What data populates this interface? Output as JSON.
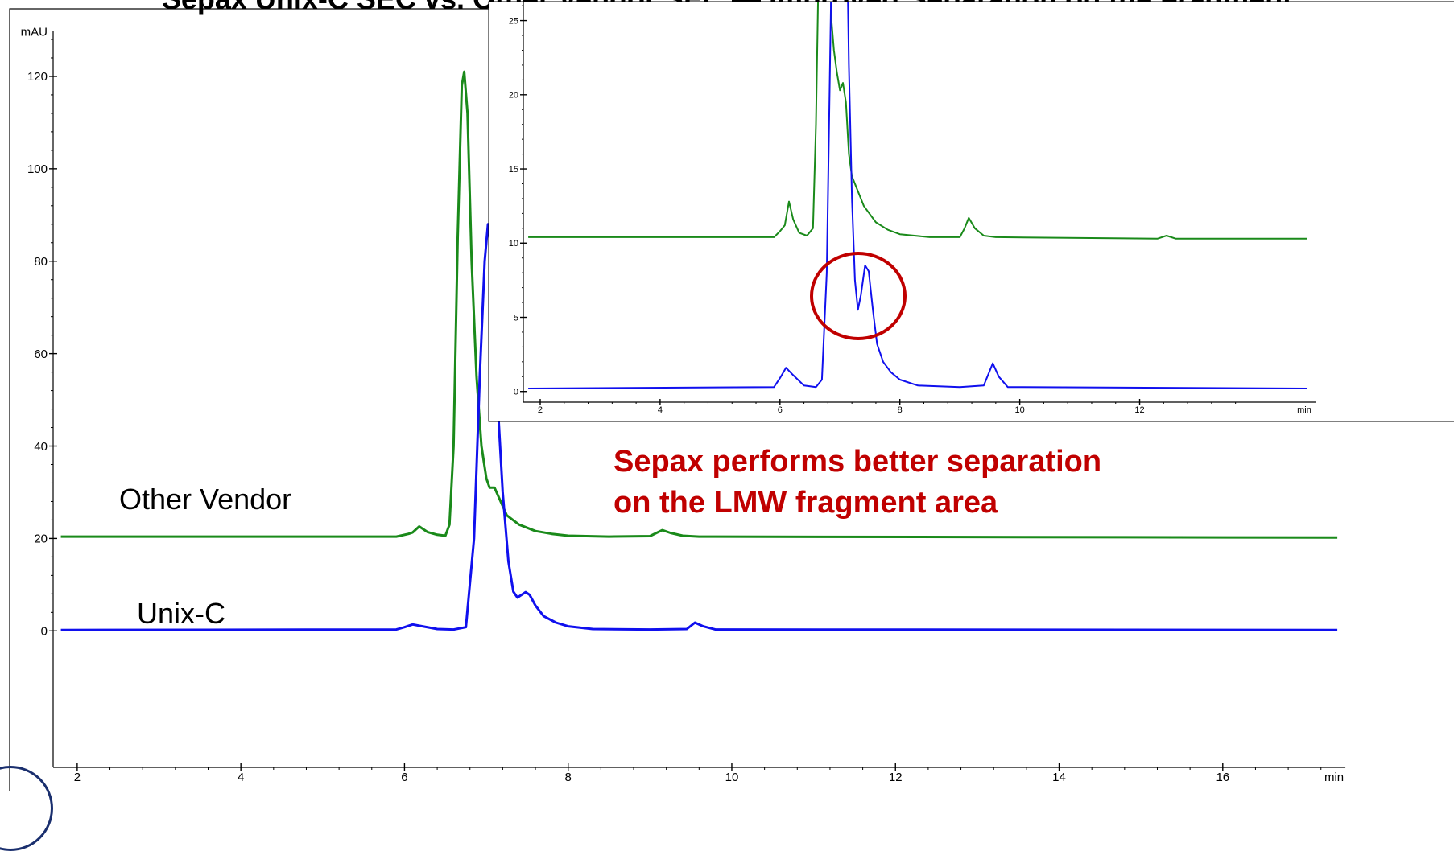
{
  "top_caption": "Sepax Unix-C SEC vs. Other Vendor SEC — Improved Separation on the Fragment",
  "chart_data": [
    {
      "type": "line",
      "ylabel_unit": "mAU",
      "xlabel_unit": "min",
      "xlim": [
        1.8,
        17.4
      ],
      "ylim": [
        -1,
        128
      ],
      "x_ticks": [
        2,
        4,
        6,
        8,
        10,
        12,
        14,
        16
      ],
      "y_ticks": [
        0,
        20,
        40,
        60,
        80,
        100,
        120
      ],
      "series": [
        {
          "name": "Other Vendor",
          "color": "#1a8a1a",
          "baseline": 20.4,
          "points": [
            [
              1.8,
              20.4
            ],
            [
              5.9,
              20.4
            ],
            [
              6.05,
              21.0
            ],
            [
              6.1,
              21.3
            ],
            [
              6.18,
              22.6
            ],
            [
              6.28,
              21.4
            ],
            [
              6.4,
              20.8
            ],
            [
              6.5,
              20.6
            ],
            [
              6.55,
              23
            ],
            [
              6.6,
              40
            ],
            [
              6.65,
              85
            ],
            [
              6.7,
              118
            ],
            [
              6.73,
              121
            ],
            [
              6.77,
              112
            ],
            [
              6.82,
              80
            ],
            [
              6.88,
              55
            ],
            [
              6.94,
              40
            ],
            [
              7.0,
              33
            ],
            [
              7.04,
              31
            ],
            [
              7.1,
              31
            ],
            [
              7.15,
              29
            ],
            [
              7.25,
              25
            ],
            [
              7.4,
              23
            ],
            [
              7.6,
              21.6
            ],
            [
              7.8,
              21.0
            ],
            [
              8.0,
              20.6
            ],
            [
              8.5,
              20.4
            ],
            [
              9.0,
              20.5
            ],
            [
              9.08,
              21.2
            ],
            [
              9.15,
              21.8
            ],
            [
              9.25,
              21.2
            ],
            [
              9.4,
              20.6
            ],
            [
              9.6,
              20.4
            ],
            [
              17.4,
              20.2
            ]
          ]
        },
        {
          "name": "Unix-C",
          "color": "#1010ee",
          "baseline": 0.2,
          "points": [
            [
              1.8,
              0.2
            ],
            [
              5.9,
              0.3
            ],
            [
              6.0,
              0.8
            ],
            [
              6.1,
              1.4
            ],
            [
              6.22,
              1.0
            ],
            [
              6.4,
              0.4
            ],
            [
              6.6,
              0.3
            ],
            [
              6.75,
              0.8
            ],
            [
              6.85,
              20
            ],
            [
              6.92,
              55
            ],
            [
              6.98,
              80
            ],
            [
              7.02,
              88
            ],
            [
              7.07,
              80
            ],
            [
              7.12,
              55
            ],
            [
              7.2,
              30
            ],
            [
              7.27,
              15
            ],
            [
              7.33,
              8.5
            ],
            [
              7.38,
              7.2
            ],
            [
              7.43,
              7.8
            ],
            [
              7.48,
              8.4
            ],
            [
              7.53,
              7.8
            ],
            [
              7.6,
              5.5
            ],
            [
              7.7,
              3.2
            ],
            [
              7.85,
              1.8
            ],
            [
              8.0,
              1.0
            ],
            [
              8.3,
              0.4
            ],
            [
              9.0,
              0.3
            ],
            [
              9.45,
              0.4
            ],
            [
              9.55,
              1.8
            ],
            [
              9.65,
              1.0
            ],
            [
              9.8,
              0.3
            ],
            [
              17.4,
              0.2
            ]
          ]
        }
      ],
      "series_labels": {
        "other_vendor": "Other Vendor",
        "unix_c": "Unix-C"
      },
      "annotation": {
        "line1": "Sepax performs better separation",
        "line2": "on the LMW fragment area",
        "color": "#c00000"
      }
    },
    {
      "type": "line",
      "inset": true,
      "ylabel_unit": "mAU",
      "xlabel_unit": "min",
      "xlim": [
        1.8,
        14.8
      ],
      "ylim": [
        -0.5,
        28
      ],
      "x_ticks": [
        2,
        4,
        6,
        8,
        10,
        12
      ],
      "y_ticks": [
        0,
        5,
        10,
        15,
        20,
        25
      ],
      "series": [
        {
          "name": "Other Vendor",
          "color": "#1a8a1a",
          "points": [
            [
              1.8,
              10.4
            ],
            [
              5.9,
              10.4
            ],
            [
              6.0,
              10.8
            ],
            [
              6.08,
              11.2
            ],
            [
              6.15,
              12.8
            ],
            [
              6.22,
              11.6
            ],
            [
              6.32,
              10.7
            ],
            [
              6.45,
              10.5
            ],
            [
              6.55,
              11
            ],
            [
              6.6,
              18
            ],
            [
              6.65,
              30
            ],
            [
              6.82,
              30
            ],
            [
              6.86,
              25
            ],
            [
              6.9,
              23
            ],
            [
              6.95,
              21.5
            ],
            [
              7.0,
              20.3
            ],
            [
              7.05,
              20.8
            ],
            [
              7.1,
              19.5
            ],
            [
              7.15,
              16
            ],
            [
              7.2,
              14.5
            ],
            [
              7.3,
              13.5
            ],
            [
              7.4,
              12.5
            ],
            [
              7.6,
              11.4
            ],
            [
              7.8,
              10.9
            ],
            [
              8.0,
              10.6
            ],
            [
              8.5,
              10.4
            ],
            [
              9.0,
              10.4
            ],
            [
              9.08,
              11.0
            ],
            [
              9.15,
              11.7
            ],
            [
              9.25,
              11.0
            ],
            [
              9.4,
              10.5
            ],
            [
              9.6,
              10.4
            ],
            [
              12.3,
              10.3
            ],
            [
              12.45,
              10.5
            ],
            [
              12.6,
              10.3
            ],
            [
              14.8,
              10.3
            ]
          ]
        },
        {
          "name": "Unix-C",
          "color": "#1010ee",
          "points": [
            [
              1.8,
              0.2
            ],
            [
              5.9,
              0.3
            ],
            [
              6.0,
              0.9
            ],
            [
              6.1,
              1.6
            ],
            [
              6.22,
              1.1
            ],
            [
              6.4,
              0.4
            ],
            [
              6.6,
              0.3
            ],
            [
              6.7,
              0.8
            ],
            [
              6.78,
              8
            ],
            [
              6.85,
              26
            ],
            [
              6.88,
              30
            ],
            [
              7.12,
              30
            ],
            [
              7.15,
              22
            ],
            [
              7.2,
              13
            ],
            [
              7.25,
              7.5
            ],
            [
              7.3,
              5.5
            ],
            [
              7.35,
              6.5
            ],
            [
              7.42,
              8.5
            ],
            [
              7.48,
              8.1
            ],
            [
              7.55,
              5.5
            ],
            [
              7.62,
              3.2
            ],
            [
              7.72,
              2.0
            ],
            [
              7.85,
              1.3
            ],
            [
              8.0,
              0.8
            ],
            [
              8.3,
              0.4
            ],
            [
              9.0,
              0.3
            ],
            [
              9.4,
              0.4
            ],
            [
              9.5,
              1.4
            ],
            [
              9.55,
              1.9
            ],
            [
              9.65,
              1.0
            ],
            [
              9.8,
              0.3
            ],
            [
              14.8,
              0.2
            ]
          ]
        }
      ]
    }
  ]
}
